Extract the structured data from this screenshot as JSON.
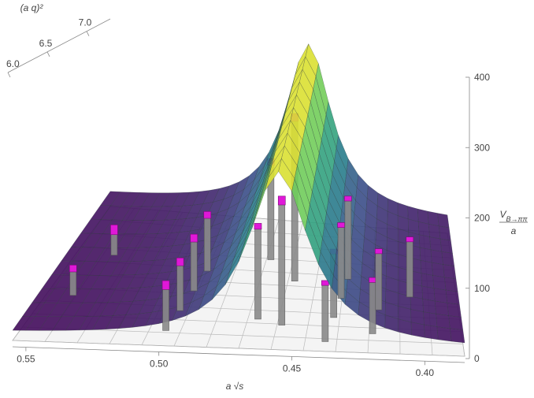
{
  "chart_data": {
    "type": "surface3d",
    "x_axis": {
      "label": "a √s",
      "ticks": [
        0.55,
        0.5,
        0.45,
        0.4
      ],
      "tick_labels": [
        "0.55",
        "0.50",
        "0.45",
        "0.40"
      ],
      "range": [
        0.385,
        0.555
      ]
    },
    "y_axis": {
      "label": "(a q)²",
      "ticks": [
        6.0,
        6.5,
        7.0
      ],
      "tick_labels": [
        "6.0",
        "6.5",
        "7.0"
      ],
      "range": [
        6.0,
        7.3
      ]
    },
    "z_axis": {
      "label": "V_{B→ππ}",
      "label_denominator": "a",
      "ticks": [
        0,
        100,
        200,
        300,
        400
      ],
      "tick_labels": [
        "0",
        "100",
        "200",
        "300",
        "400"
      ],
      "range": [
        0,
        400
      ]
    },
    "surface": {
      "peak_at": 0.455,
      "peak_height": 365,
      "half_width": 0.014,
      "colormap": "viridis"
    },
    "data_points": [
      {
        "x": 0.544,
        "y": 6.45,
        "z": 55,
        "dz": 14
      },
      {
        "x": 0.538,
        "y": 6.85,
        "z": 52,
        "dz": 20
      },
      {
        "x": 0.5,
        "y": 6.15,
        "z": 93,
        "dz": 18
      },
      {
        "x": 0.498,
        "y": 6.35,
        "z": 100,
        "dz": 16
      },
      {
        "x": 0.496,
        "y": 6.55,
        "z": 108,
        "dz": 16
      },
      {
        "x": 0.494,
        "y": 6.75,
        "z": 115,
        "dz": 14
      },
      {
        "x": 0.468,
        "y": 6.9,
        "z": 200,
        "dz": 14
      },
      {
        "x": 0.466,
        "y": 6.3,
        "z": 190,
        "dz": 12
      },
      {
        "x": 0.456,
        "y": 6.25,
        "z": 255,
        "dz": 18
      },
      {
        "x": 0.455,
        "y": 6.7,
        "z": 335,
        "dz": 16
      },
      {
        "x": 0.438,
        "y": 6.1,
        "z": 120,
        "dz": 10
      },
      {
        "x": 0.436,
        "y": 6.35,
        "z": 135,
        "dz": 10
      },
      {
        "x": 0.434,
        "y": 6.55,
        "z": 150,
        "dz": 10
      },
      {
        "x": 0.432,
        "y": 6.75,
        "z": 165,
        "dz": 10
      },
      {
        "x": 0.42,
        "y": 6.2,
        "z": 110,
        "dz": 10
      },
      {
        "x": 0.418,
        "y": 6.45,
        "z": 120,
        "dz": 10
      },
      {
        "x": 0.405,
        "y": 6.6,
        "z": 118,
        "dz": 10
      }
    ],
    "grid": true
  }
}
